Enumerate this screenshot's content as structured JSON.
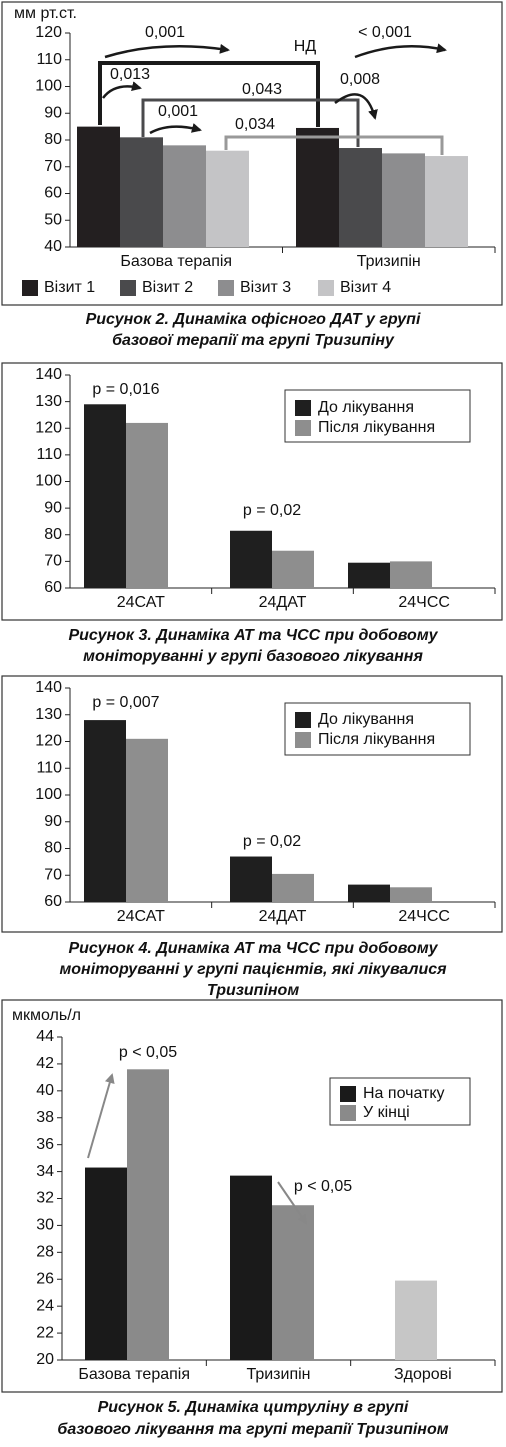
{
  "chart_data": [
    {
      "type": "bar",
      "ylabel": "мм рт.ст.",
      "categories": [
        "Базова терапія",
        "Тризипін"
      ],
      "series": [
        {
          "name": "Візит 1",
          "color": "#231f20",
          "values": [
            85,
            84.5
          ]
        },
        {
          "name": "Візит 2",
          "color": "#4a4a4c",
          "values": [
            81,
            77
          ]
        },
        {
          "name": "Візит 3",
          "color": "#8d8d8f",
          "values": [
            78,
            75
          ]
        },
        {
          "name": "Візит 4",
          "color": "#c4c4c6",
          "values": [
            76,
            74
          ]
        }
      ],
      "ylim": [
        40,
        120
      ],
      "yticks": [
        40,
        50,
        60,
        70,
        80,
        90,
        100,
        110,
        120
      ],
      "legend": "bottom",
      "annotations": [
        "0,001",
        "НД",
        "< 0,001",
        "0,013",
        "0,043",
        "0,008",
        "0,001",
        "0,034"
      ],
      "caption": [
        "Рисунок 2.  Динаміка офісного ДАТ у групі",
        "базової терапії та групі Тризипіну"
      ]
    },
    {
      "type": "bar",
      "categories": [
        "24САТ",
        "24ДАТ",
        "24ЧСС"
      ],
      "series": [
        {
          "name": "До лікування",
          "color": "#1f1f1f",
          "values": [
            129,
            81.5,
            69.5
          ]
        },
        {
          "name": "Після лікування",
          "color": "#8e8e8e",
          "values": [
            122,
            74,
            70
          ]
        }
      ],
      "ylim": [
        60,
        140
      ],
      "yticks": [
        60,
        70,
        80,
        90,
        100,
        110,
        120,
        130,
        140
      ],
      "legend": "upper right",
      "annotations": [
        "p = 0,016",
        "p = 0,02"
      ],
      "caption": [
        "Рисунок 3.  Динаміка АТ та ЧСС при добовому",
        "моніторуванні у групі базового лікування"
      ]
    },
    {
      "type": "bar",
      "categories": [
        "24САТ",
        "24ДАТ",
        "24ЧСС"
      ],
      "series": [
        {
          "name": "До лікування",
          "color": "#1f1f1f",
          "values": [
            128,
            77,
            66.5
          ]
        },
        {
          "name": "Після лікування",
          "color": "#8e8e8e",
          "values": [
            121,
            70.5,
            65.5
          ]
        }
      ],
      "ylim": [
        60,
        140
      ],
      "yticks": [
        60,
        70,
        80,
        90,
        100,
        110,
        120,
        130,
        140
      ],
      "legend": "upper right",
      "annotations": [
        "p = 0,007",
        "p = 0,02"
      ],
      "caption": [
        "Рисунок 4.  Динаміка АТ та ЧСС при добовому",
        "моніторуванні у групі пацієнтів, які лікувалися",
        "Тризипіном"
      ]
    },
    {
      "type": "bar",
      "ylabel": "мкмоль/л",
      "categories": [
        "Базова терапія",
        "Тризипін",
        "Здорові"
      ],
      "series": [
        {
          "name": "На початку",
          "color": "#1a1a1a",
          "values": [
            34.3,
            33.7,
            null
          ]
        },
        {
          "name": "У кінці",
          "color": "#8a8a8a",
          "colors": [
            "#8a8a8a",
            "#8a8a8a",
            "#c6c6c6"
          ],
          "values": [
            41.6,
            31.5,
            25.9
          ]
        }
      ],
      "ylim": [
        20,
        44
      ],
      "yticks": [
        20,
        22,
        24,
        26,
        28,
        30,
        32,
        34,
        36,
        38,
        40,
        42,
        44
      ],
      "legend": "upper right",
      "annotations": [
        "p < 0,05",
        "p < 0,05"
      ],
      "caption": [
        "Рисунок 5.  Динаміка цитруліну в групі",
        "базового лікування та групі терапії Тризипіном"
      ]
    }
  ]
}
